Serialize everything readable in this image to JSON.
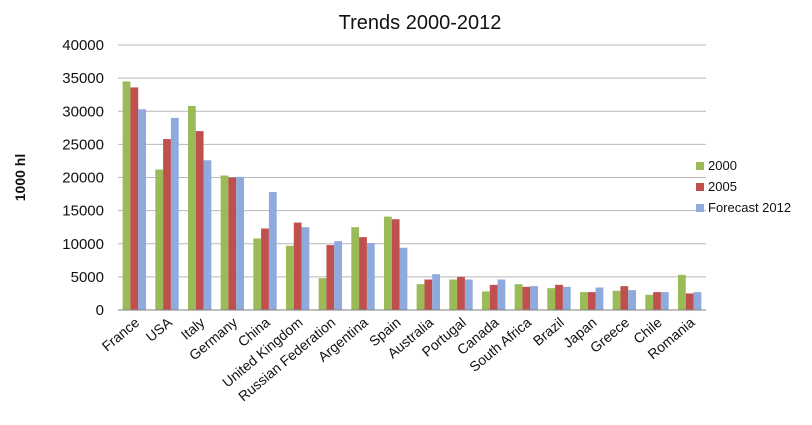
{
  "chart_data": {
    "type": "bar",
    "title": "Trends 2000-2012",
    "xlabel": "",
    "ylabel": "1000 hl",
    "ylim": [
      0,
      40000
    ],
    "yticks": [
      0,
      5000,
      10000,
      15000,
      20000,
      25000,
      30000,
      35000,
      40000
    ],
    "grid": true,
    "legend_position": "right",
    "categories": [
      "France",
      "USA",
      "Italy",
      "Germany",
      "China",
      "United Kingdom",
      "Russian Federation",
      "Argentina",
      "Spain",
      "Australia",
      "Portugal",
      "Canada",
      "South Africa",
      "Brazil",
      "Japan",
      "Greece",
      "Chile",
      "Romania"
    ],
    "series": [
      {
        "name": "2000",
        "color": "#9bbb59",
        "values": [
          34500,
          21200,
          30800,
          20300,
          10800,
          9700,
          4800,
          12500,
          14100,
          3900,
          4600,
          2800,
          3900,
          3300,
          2700,
          2900,
          2300,
          5300
        ]
      },
      {
        "name": "2005",
        "color": "#c0504d",
        "values": [
          33600,
          25800,
          27000,
          20000,
          12300,
          13200,
          9800,
          11000,
          13700,
          4600,
          5000,
          3800,
          3500,
          3800,
          2700,
          3600,
          2700,
          2500
        ]
      },
      {
        "name": "Forecast 2012",
        "color": "#8faadc",
        "values": [
          30300,
          29000,
          22600,
          20100,
          17800,
          12500,
          10400,
          10100,
          9400,
          5400,
          4600,
          4600,
          3600,
          3500,
          3400,
          3000,
          2700,
          2700
        ]
      }
    ]
  }
}
